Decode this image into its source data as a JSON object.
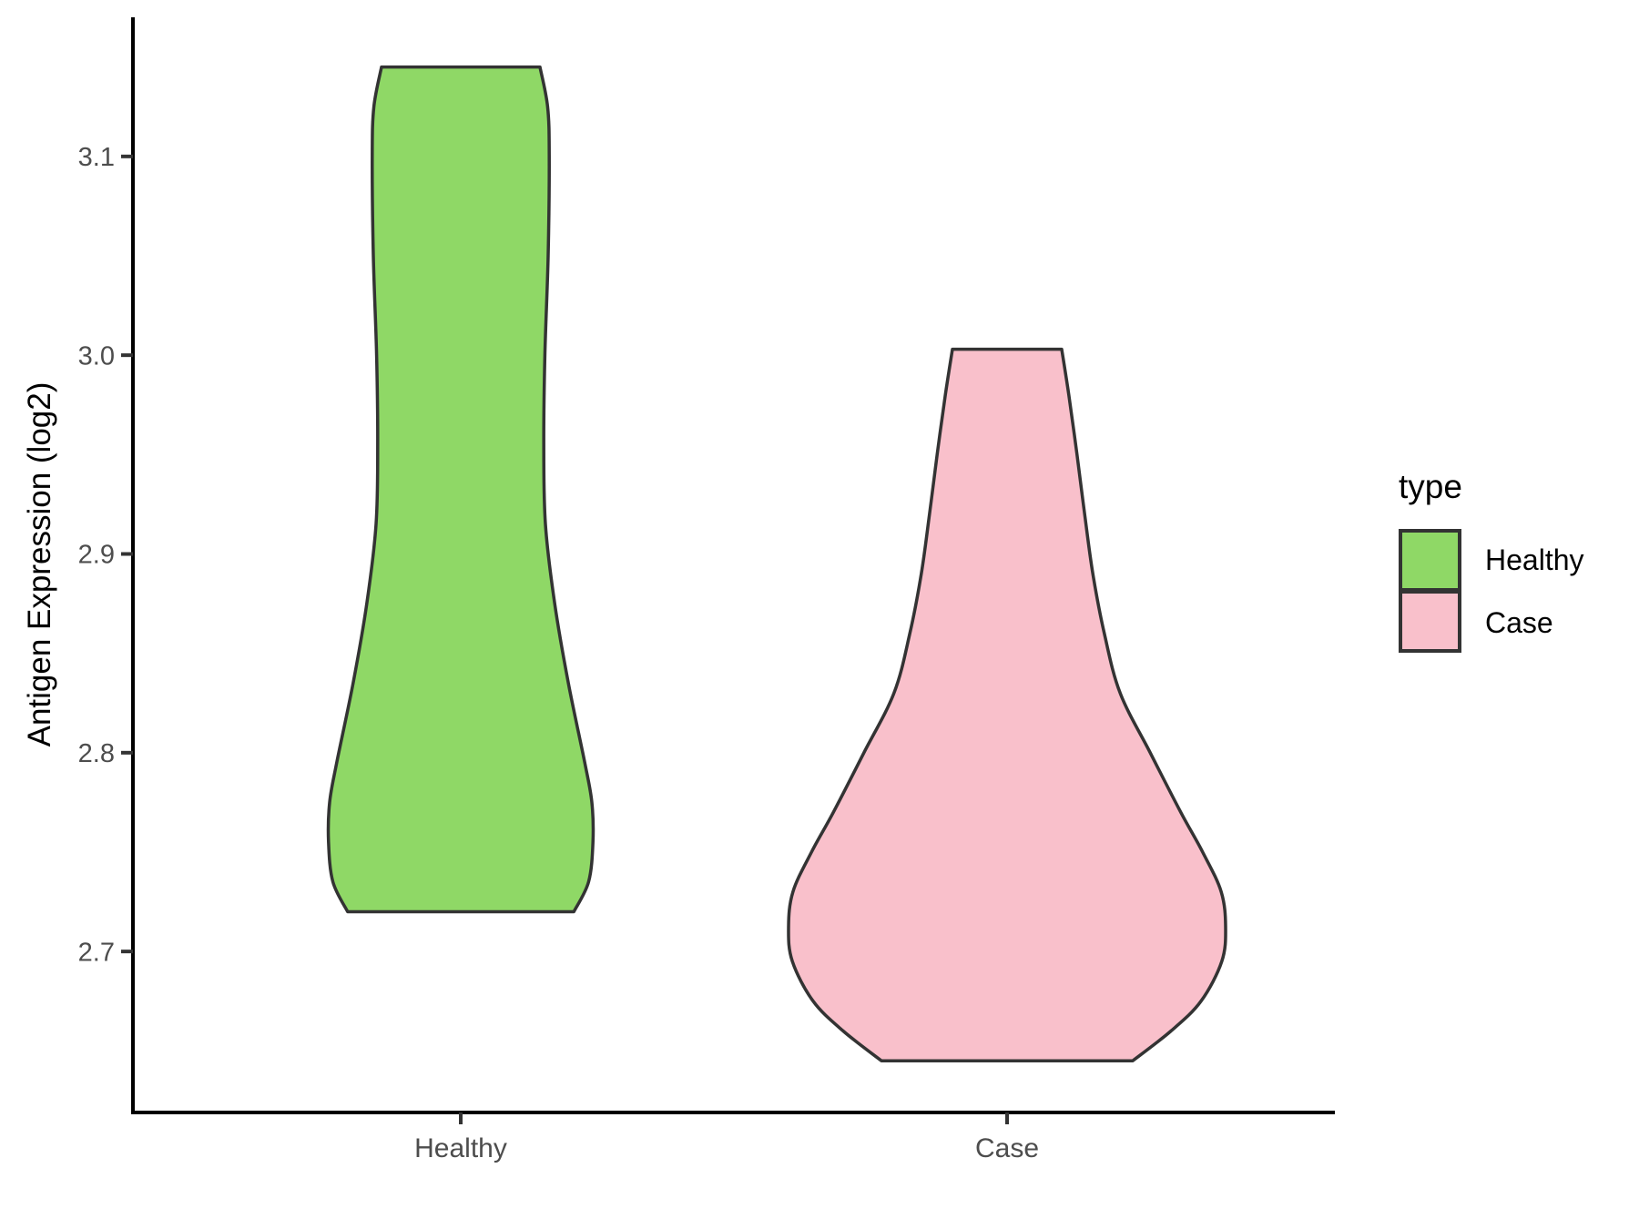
{
  "figure": {
    "background": "#FFFFFF"
  },
  "y_axis": {
    "title": "Antigen Expression (log2)",
    "tick_labels": [
      "2.7",
      "2.8",
      "2.9",
      "3.0",
      "3.1"
    ],
    "tick_label_color": "#4D4D4D",
    "title_color": "#000000"
  },
  "x_axis": {
    "category_labels": [
      "Healthy",
      "Case"
    ],
    "tick_label_color": "#4D4D4D"
  },
  "legend": {
    "title": "type",
    "items": [
      {
        "label": "Healthy"
      },
      {
        "label": "Case"
      }
    ]
  },
  "chart_data": {
    "type": "violin",
    "title": "",
    "xlabel": "",
    "ylabel": "Antigen Expression (log2)",
    "categories": [
      "Healthy",
      "Case"
    ],
    "y_ticks": [
      2.7,
      2.8,
      2.9,
      3.0,
      3.1
    ],
    "ylim": [
      2.619,
      3.17
    ],
    "grid": false,
    "legend_position": "right",
    "legend_title": "type",
    "outline_color": "#333333",
    "axis_color": "#000000",
    "series": [
      {
        "name": "Healthy",
        "fill": "#8FD866",
        "y_min": 2.72,
        "y_max": 3.145,
        "widest_at": 2.76,
        "profile": [
          [
            3.145,
            0.145
          ],
          [
            3.125,
            0.159
          ],
          [
            3.1,
            0.162
          ],
          [
            3.05,
            0.16
          ],
          [
            3.0,
            0.154
          ],
          [
            2.955,
            0.152
          ],
          [
            2.915,
            0.155
          ],
          [
            2.875,
            0.172
          ],
          [
            2.835,
            0.197
          ],
          [
            2.795,
            0.227
          ],
          [
            2.775,
            0.24
          ],
          [
            2.755,
            0.242
          ],
          [
            2.735,
            0.234
          ],
          [
            2.72,
            0.207
          ]
        ]
      },
      {
        "name": "Case",
        "fill": "#F9C0CB",
        "y_min": 2.645,
        "y_max": 3.003,
        "widest_at": 2.71,
        "profile": [
          [
            3.003,
            0.1
          ],
          [
            2.98,
            0.113
          ],
          [
            2.95,
            0.128
          ],
          [
            2.92,
            0.142
          ],
          [
            2.89,
            0.157
          ],
          [
            2.86,
            0.178
          ],
          [
            2.83,
            0.207
          ],
          [
            2.8,
            0.262
          ],
          [
            2.77,
            0.318
          ],
          [
            2.75,
            0.358
          ],
          [
            2.73,
            0.392
          ],
          [
            2.712,
            0.4
          ],
          [
            2.695,
            0.393
          ],
          [
            2.675,
            0.355
          ],
          [
            2.66,
            0.3
          ],
          [
            2.645,
            0.23
          ]
        ]
      }
    ]
  }
}
